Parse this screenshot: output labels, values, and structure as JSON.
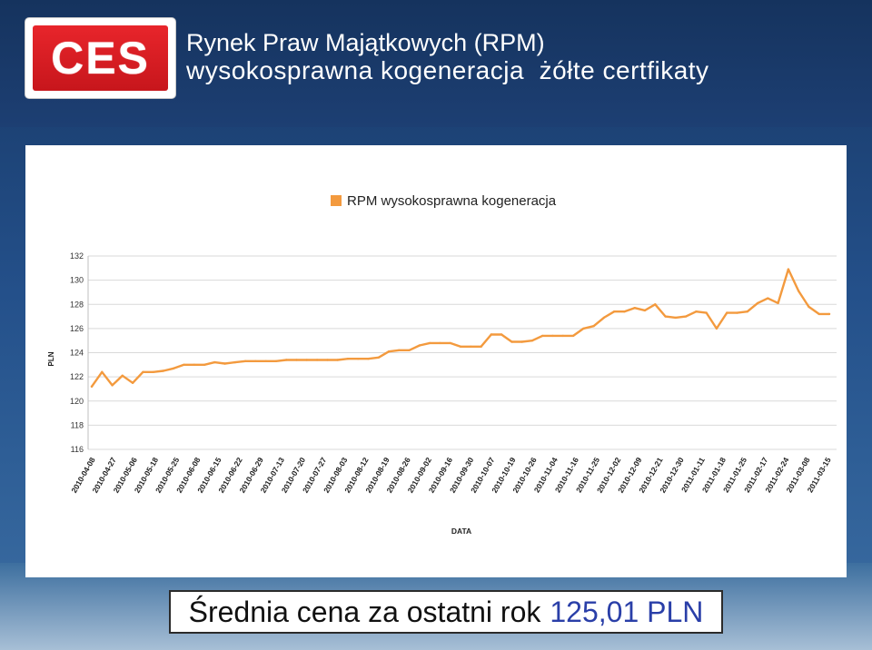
{
  "header": {
    "logo_text": "CES",
    "title_line1": "Rynek Praw Majątkowych (RPM)",
    "title_line2": "wysokosprawna kogeneracja  żółte certfikaty"
  },
  "footer": {
    "text": "Średnia cena za ostatni rok",
    "value": "125,01 PLN"
  },
  "colors": {
    "series": "#f39a3e",
    "grid": "#d9d9d9",
    "background": "#1d3f73",
    "footer_value": "#2a3fa8"
  },
  "chart_data": {
    "type": "line",
    "title": "",
    "xlabel": "DATA",
    "ylabel": "PLN",
    "ylim": [
      116,
      132
    ],
    "yticks": [
      116,
      118,
      120,
      122,
      124,
      126,
      128,
      130,
      132
    ],
    "grid": true,
    "legend_position": "top-center",
    "x_tick_labels": [
      "2010-04-08",
      "2010-04-27",
      "2010-05-06",
      "2010-05-18",
      "2010-05-25",
      "2010-06-08",
      "2010-06-15",
      "2010-06-22",
      "2010-06-29",
      "2010-07-13",
      "2010-07-20",
      "2010-07-27",
      "2010-08-03",
      "2010-08-12",
      "2010-08-19",
      "2010-08-26",
      "2010-09-02",
      "2010-09-16",
      "2010-09-30",
      "2010-10-07",
      "2010-10-19",
      "2010-10-26",
      "2010-11-04",
      "2010-11-16",
      "2010-11-25",
      "2010-12-02",
      "2010-12-09",
      "2010-12-21",
      "2010-12-30",
      "2011-01-11",
      "2011-01-18",
      "2011-01-25",
      "2011-02-17",
      "2011-02-24",
      "2011-03-08",
      "2011-03-15"
    ],
    "series": [
      {
        "name": "RPM wysokosprawna kogeneracja",
        "values": [
          121.2,
          122.4,
          121.3,
          122.1,
          121.5,
          122.4,
          122.4,
          122.5,
          122.7,
          123.0,
          123.0,
          123.0,
          123.2,
          123.1,
          123.2,
          123.3,
          123.3,
          123.3,
          123.3,
          123.4,
          123.4,
          123.4,
          123.4,
          123.4,
          123.4,
          123.5,
          123.5,
          123.5,
          123.6,
          124.1,
          124.2,
          124.2,
          124.6,
          124.8,
          124.8,
          124.8,
          124.5,
          124.5,
          124.5,
          125.5,
          125.5,
          124.9,
          124.9,
          125.0,
          125.4,
          125.4,
          125.4,
          125.4,
          126.0,
          126.2,
          126.9,
          127.4,
          127.4,
          127.7,
          127.5,
          128.0,
          127.0,
          126.9,
          127.0,
          127.4,
          127.3,
          126.0,
          127.3,
          127.3,
          127.4,
          128.1,
          128.5,
          128.1,
          130.9,
          129.1,
          127.8,
          127.2,
          127.2
        ]
      }
    ]
  }
}
